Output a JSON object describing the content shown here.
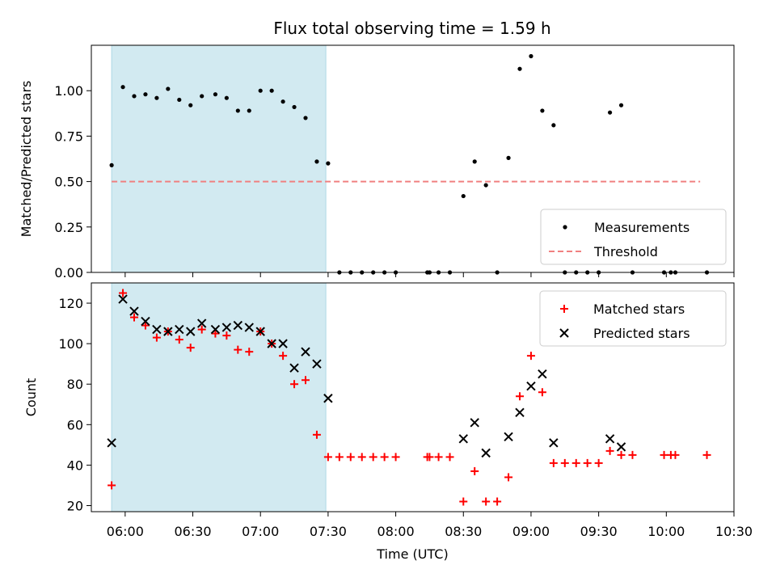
{
  "title": "Flux total observing time = 1.59 h",
  "colors": {
    "shade": "#add8e6",
    "measurement": "#000000",
    "threshold": "#f08080",
    "matched": "#ff0000",
    "predicted": "#000000"
  },
  "chart_data": [
    {
      "type": "scatter",
      "ylabel": "Matched/Predicted stars",
      "xlabel": "",
      "xlim": [
        "05:45",
        "10:30"
      ],
      "ylim": [
        0,
        1.25
      ],
      "yticks": [
        "0.00",
        "0.25",
        "0.50",
        "0.75",
        "1.00"
      ],
      "shaded_interval": [
        "05:54",
        "07:29"
      ],
      "threshold": 0.5,
      "threshold_range": [
        "05:54",
        "10:15"
      ],
      "legend": {
        "position": "lower right",
        "entries": [
          "Measurements",
          "Threshold"
        ]
      },
      "series": [
        {
          "name": "Measurements",
          "points": [
            [
              "05:54",
              0.59
            ],
            [
              "05:59",
              1.02
            ],
            [
              "06:04",
              0.97
            ],
            [
              "06:09",
              0.98
            ],
            [
              "06:14",
              0.96
            ],
            [
              "06:19",
              1.01
            ],
            [
              "06:24",
              0.95
            ],
            [
              "06:29",
              0.92
            ],
            [
              "06:34",
              0.97
            ],
            [
              "06:40",
              0.98
            ],
            [
              "06:45",
              0.96
            ],
            [
              "06:50",
              0.89
            ],
            [
              "06:55",
              0.89
            ],
            [
              "07:00",
              1.0
            ],
            [
              "07:05",
              1.0
            ],
            [
              "07:10",
              0.94
            ],
            [
              "07:15",
              0.91
            ],
            [
              "07:20",
              0.85
            ],
            [
              "07:25",
              0.61
            ],
            [
              "07:30",
              0.6
            ],
            [
              "07:35",
              0.0
            ],
            [
              "07:40",
              0.0
            ],
            [
              "07:45",
              0.0
            ],
            [
              "07:50",
              0.0
            ],
            [
              "07:55",
              0.0
            ],
            [
              "08:00",
              0.0
            ],
            [
              "08:14",
              0.0
            ],
            [
              "08:15",
              0.0
            ],
            [
              "08:19",
              0.0
            ],
            [
              "08:24",
              0.0
            ],
            [
              "08:30",
              0.42
            ],
            [
              "08:35",
              0.61
            ],
            [
              "08:40",
              0.48
            ],
            [
              "08:45",
              0.0
            ],
            [
              "08:50",
              0.63
            ],
            [
              "08:55",
              1.12
            ],
            [
              "09:00",
              1.19
            ],
            [
              "09:05",
              0.89
            ],
            [
              "09:10",
              0.81
            ],
            [
              "09:15",
              0.0
            ],
            [
              "09:20",
              0.0
            ],
            [
              "09:25",
              0.0
            ],
            [
              "09:30",
              0.0
            ],
            [
              "09:35",
              0.88
            ],
            [
              "09:40",
              0.92
            ],
            [
              "09:45",
              0.0
            ],
            [
              "09:59",
              0.0
            ],
            [
              "10:02",
              0.0
            ],
            [
              "10:04",
              0.0
            ],
            [
              "10:18",
              0.0
            ]
          ]
        }
      ]
    },
    {
      "type": "scatter",
      "ylabel": "Count",
      "xlabel": "Time (UTC)",
      "xlim": [
        "05:45",
        "10:30"
      ],
      "ylim": [
        17,
        130
      ],
      "yticks": [
        "20",
        "40",
        "60",
        "80",
        "100",
        "120"
      ],
      "xticks": [
        "06:00",
        "06:30",
        "07:00",
        "07:30",
        "08:00",
        "08:30",
        "09:00",
        "09:30",
        "10:00",
        "10:30"
      ],
      "shaded_interval": [
        "05:54",
        "07:29"
      ],
      "legend": {
        "position": "upper right",
        "entries": [
          "Matched stars",
          "Predicted stars"
        ]
      },
      "series": [
        {
          "name": "Matched stars",
          "points": [
            [
              "05:54",
              30
            ],
            [
              "05:59",
              125
            ],
            [
              "06:04",
              113
            ],
            [
              "06:09",
              109
            ],
            [
              "06:14",
              103
            ],
            [
              "06:19",
              106
            ],
            [
              "06:24",
              102
            ],
            [
              "06:29",
              98
            ],
            [
              "06:34",
              107
            ],
            [
              "06:40",
              105
            ],
            [
              "06:45",
              104
            ],
            [
              "06:50",
              97
            ],
            [
              "06:55",
              96
            ],
            [
              "07:00",
              106
            ],
            [
              "07:05",
              100
            ],
            [
              "07:10",
              94
            ],
            [
              "07:15",
              80
            ],
            [
              "07:20",
              82
            ],
            [
              "07:25",
              55
            ],
            [
              "07:30",
              44
            ],
            [
              "07:35",
              44
            ],
            [
              "07:40",
              44
            ],
            [
              "07:45",
              44
            ],
            [
              "07:50",
              44
            ],
            [
              "07:55",
              44
            ],
            [
              "08:00",
              44
            ],
            [
              "08:14",
              44
            ],
            [
              "08:15",
              44
            ],
            [
              "08:19",
              44
            ],
            [
              "08:24",
              44
            ],
            [
              "08:30",
              22
            ],
            [
              "08:35",
              37
            ],
            [
              "08:40",
              22
            ],
            [
              "08:45",
              22
            ],
            [
              "08:50",
              34
            ],
            [
              "08:55",
              74
            ],
            [
              "09:00",
              94
            ],
            [
              "09:05",
              76
            ],
            [
              "09:10",
              41
            ],
            [
              "09:15",
              41
            ],
            [
              "09:20",
              41
            ],
            [
              "09:25",
              41
            ],
            [
              "09:30",
              41
            ],
            [
              "09:35",
              47
            ],
            [
              "09:40",
              45
            ],
            [
              "09:45",
              45
            ],
            [
              "09:59",
              45
            ],
            [
              "10:02",
              45
            ],
            [
              "10:04",
              45
            ],
            [
              "10:18",
              45
            ]
          ]
        },
        {
          "name": "Predicted stars",
          "points": [
            [
              "05:54",
              51
            ],
            [
              "05:59",
              122
            ],
            [
              "06:04",
              116
            ],
            [
              "06:09",
              111
            ],
            [
              "06:14",
              107
            ],
            [
              "06:19",
              106
            ],
            [
              "06:24",
              107
            ],
            [
              "06:29",
              106
            ],
            [
              "06:34",
              110
            ],
            [
              "06:40",
              107
            ],
            [
              "06:45",
              108
            ],
            [
              "06:50",
              109
            ],
            [
              "06:55",
              108
            ],
            [
              "07:00",
              106
            ],
            [
              "07:05",
              100
            ],
            [
              "07:10",
              100
            ],
            [
              "07:15",
              88
            ],
            [
              "07:20",
              96
            ],
            [
              "07:25",
              90
            ],
            [
              "07:30",
              73
            ],
            [
              "08:30",
              53
            ],
            [
              "08:35",
              61
            ],
            [
              "08:40",
              46
            ],
            [
              "08:50",
              54
            ],
            [
              "08:55",
              66
            ],
            [
              "09:00",
              79
            ],
            [
              "09:05",
              85
            ],
            [
              "09:10",
              51
            ],
            [
              "09:35",
              53
            ],
            [
              "09:40",
              49
            ]
          ]
        }
      ]
    }
  ]
}
